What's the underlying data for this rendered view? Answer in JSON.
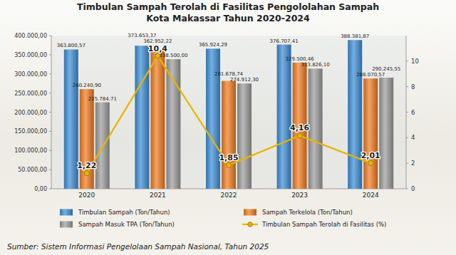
{
  "chart_data": {
    "type": "bar",
    "title": "Timbulan Sampah Terolah di Fasilitas Pengololahan Sampah",
    "subtitle": "Kota Makassar Tahun 2020-2024",
    "annotations": [
      "Sumber: Sistem Informasi Pengelolaan Sampah Nasional, Tahun 2025"
    ],
    "categories": [
      "2020",
      "2021",
      "2022",
      "2023",
      "2024"
    ],
    "series": [
      {
        "name": "Timbulan Sampah (Ton/Tahun)",
        "type": "bar",
        "color": "#3a8dd6",
        "values": [
          363800.57,
          373653.37,
          365924.29,
          376707.41,
          388381.87
        ],
        "value_labels": [
          "363.800,57",
          "373.653,37",
          "365.924,29",
          "376.707,41",
          "388.381,87"
        ]
      },
      {
        "name": "Sampah Terkelola (Ton/Tahun)",
        "type": "bar",
        "color": "#f07a1e",
        "values": [
          260240.9,
          362952.22,
          281678.74,
          329500.46,
          288070.57
        ],
        "value_labels": [
          "260.240,90",
          "362.952,22",
          "281.678,74",
          "329.500,46",
          "288.070,57"
        ]
      },
      {
        "name": "Sampah Masuk TPA (Ton/Tahun)",
        "type": "bar",
        "color": "#9b9b9b",
        "values": [
          225784.71,
          338500.0,
          274912.3,
          313826.1,
          290245.55
        ],
        "value_labels": [
          "225.784,71",
          "338.500,00",
          "274.912,30",
          "313.826,10",
          "290.245,55"
        ]
      },
      {
        "name": "Timbulan Sampah Terolah di Fasilitas (%)",
        "type": "line",
        "axis": "y2",
        "color": "#e8b400",
        "marker": "circle",
        "line_style": "solid",
        "values": [
          1.22,
          10.4,
          1.85,
          4.16,
          2.01
        ],
        "value_labels": [
          "1,22",
          "10,4",
          "1,85",
          "4,16",
          "2,01"
        ]
      }
    ],
    "ylim": [
      0,
      400000
    ],
    "yticks": [
      {
        "value": 0,
        "label": "0,00"
      },
      {
        "value": 50000,
        "label": "50.000,00"
      },
      {
        "value": 100000,
        "label": "100.000,00"
      },
      {
        "value": 150000,
        "label": "150.000,00"
      },
      {
        "value": 200000,
        "label": "200.000,00"
      },
      {
        "value": 250000,
        "label": "250.000,00"
      },
      {
        "value": 300000,
        "label": "300.000,00"
      },
      {
        "value": 350000,
        "label": "350.000,00"
      },
      {
        "value": 400000,
        "label": "400.000,00"
      }
    ],
    "y2lim": [
      0,
      12
    ],
    "y2ticks": [
      0,
      2,
      4,
      6,
      8,
      10
    ],
    "grid": false,
    "legend": "bottom",
    "data_labels": true
  }
}
